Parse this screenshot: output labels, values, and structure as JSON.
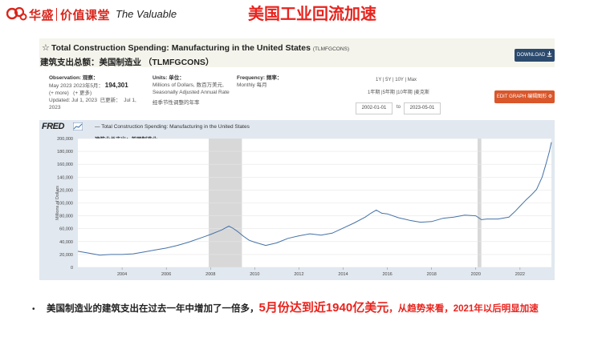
{
  "header": {
    "logo_cn_1": "华盛",
    "logo_cn_2": "价值课堂",
    "logo_en": "The Valuable",
    "slide_title": "美国工业回流加速"
  },
  "fred": {
    "series_title": "Total Construction Spending: Manufacturing in the United States",
    "series_id": "(TLMFGCONS)",
    "cn_title": "建筑支出总额：美国制造业  （TLMFGCONS）",
    "download_label": "DOWNLOAD",
    "observation_label": "Observation:",
    "observation_label_cn": "观察：",
    "observation_date": "May 2023",
    "observation_date_cn": "2023年5月：",
    "observation_value": "194,301",
    "more": "(+ more)",
    "more_cn": "(+ 更多)",
    "updated": "Updated: Jul 1, 2023",
    "updated_cn": "已更新：",
    "updated_date2": "Jul 1,",
    "updated_year": "2023",
    "units_label": "Units:",
    "units_label_cn": "单位：",
    "units_value_1": "Millions of Dollars,",
    "units_value_1_cn": "数百万美元,",
    "units_value_2": "Seasonally Adjusted Annual Rate",
    "units_value_3": "经季节性调整的年率",
    "frequency_label": "Frequency:",
    "frequency_label_cn": "频率：",
    "frequency_value": "Monthly",
    "frequency_value_cn": "每月",
    "range_options": "1Y | 5Y | 10Y | Max",
    "range_options_cn": "1年期 |5年期 |10年期 |麦克斯",
    "date_from": "2002-01-01",
    "date_to_label": "to",
    "date_to": "2023-05-01",
    "edit_label": "EDIT GRAPH  编辑图形",
    "fred_logo": "FRED",
    "legend_text": "— Total Construction Spending: Manufacturing in the United States",
    "legend_cn": "建筑业总支出：美国制造业",
    "ylabel": "Millions of Dollars"
  },
  "chart_data": {
    "type": "line",
    "ylabel": "Millions of Dollars",
    "ylim": [
      0,
      200000
    ],
    "xlim": [
      2002.0,
      2023.42
    ],
    "y_ticks": [
      0,
      20000,
      40000,
      60000,
      80000,
      100000,
      120000,
      140000,
      160000,
      180000,
      200000
    ],
    "y_tick_labels": [
      "0",
      "20,000",
      "40,000",
      "60,000",
      "80,000",
      "100,000",
      "120,000",
      "140,000",
      "160,000",
      "180,000",
      "200,000"
    ],
    "x_ticks": [
      2004,
      2006,
      2008,
      2010,
      2012,
      2014,
      2016,
      2018,
      2020,
      2022
    ],
    "x_tick_labels": [
      "2004",
      "2006",
      "2008",
      "2010",
      "2012",
      "2014",
      "2016",
      "2018",
      "2020",
      "2022"
    ],
    "recessions": [
      [
        2007.92,
        2009.42
      ],
      [
        2020.08,
        2020.25
      ]
    ],
    "grid": "horizontal",
    "series": [
      {
        "name": "Total Construction Spending: Manufacturing in the United States",
        "color": "#4572a7",
        "x": [
          2002.0,
          2002.5,
          2003.0,
          2003.5,
          2004.0,
          2004.5,
          2005.0,
          2005.5,
          2006.0,
          2006.5,
          2007.0,
          2007.5,
          2008.0,
          2008.5,
          2008.83,
          2009.0,
          2009.25,
          2009.5,
          2009.75,
          2010.0,
          2010.5,
          2011.0,
          2011.5,
          2012.0,
          2012.5,
          2013.0,
          2013.5,
          2014.0,
          2014.5,
          2015.0,
          2015.25,
          2015.5,
          2015.75,
          2016.0,
          2016.5,
          2017.0,
          2017.5,
          2018.0,
          2018.5,
          2019.0,
          2019.5,
          2020.0,
          2020.25,
          2020.5,
          2021.0,
          2021.5,
          2021.75,
          2022.0,
          2022.25,
          2022.5,
          2022.75,
          2023.0,
          2023.17,
          2023.33,
          2023.42
        ],
        "values": [
          25000,
          22000,
          19000,
          20000,
          20000,
          21000,
          24000,
          27000,
          30000,
          34000,
          39000,
          45000,
          51000,
          58000,
          64000,
          61000,
          55000,
          48000,
          42000,
          39000,
          34000,
          38000,
          45000,
          49000,
          52000,
          50000,
          53000,
          61000,
          69000,
          78000,
          84000,
          89000,
          84000,
          83000,
          77000,
          73000,
          70000,
          71000,
          76000,
          78000,
          81000,
          80000,
          74000,
          75000,
          75000,
          78000,
          86000,
          95000,
          104000,
          112000,
          121000,
          140000,
          160000,
          180000,
          194301
        ]
      }
    ]
  },
  "note": {
    "bullet": "•",
    "part1": "美国制造业的建筑支出在过去一年中增加了一倍多，",
    "part2": "5月份达到近1940亿美元",
    "part3": "，从趋势来看，2021年以后明显加速"
  }
}
